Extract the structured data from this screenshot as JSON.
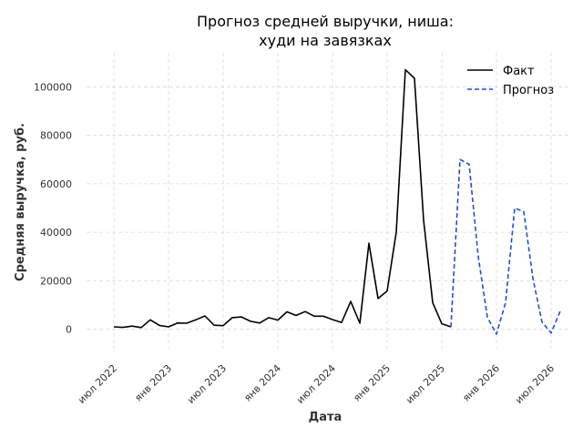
{
  "chart_data": {
    "type": "line",
    "title_line1": "Прогноз средней выручки, ниша:",
    "title_line2": "худи на завязках",
    "xlabel": "Дата",
    "ylabel": "Средняя выручка, руб.",
    "xticks": [
      {
        "label": "июл 2022",
        "date": "2022-07"
      },
      {
        "label": "янв 2023",
        "date": "2023-01"
      },
      {
        "label": "июл 2023",
        "date": "2023-07"
      },
      {
        "label": "янв 2024",
        "date": "2024-01"
      },
      {
        "label": "июл 2024",
        "date": "2024-07"
      },
      {
        "label": "янв 2025",
        "date": "2025-01"
      },
      {
        "label": "июл 2025",
        "date": "2025-07"
      },
      {
        "label": "янв 2026",
        "date": "2026-01"
      },
      {
        "label": "июл 2026",
        "date": "2026-07"
      }
    ],
    "yticks": [
      0,
      20000,
      40000,
      60000,
      80000,
      100000
    ],
    "ytick_labels": [
      "0",
      "20000",
      "40000",
      "60000",
      "80000",
      "100000"
    ],
    "ylim": [
      -8000,
      114000
    ],
    "xlim": [
      "2022-04",
      "2026-09"
    ],
    "legend_position": "top-right",
    "grid": true,
    "series": [
      {
        "name": "Факт",
        "color": "#000000",
        "style": "solid",
        "points": [
          [
            "2022-07",
            1000
          ],
          [
            "2022-08",
            800
          ],
          [
            "2022-09",
            1300
          ],
          [
            "2022-10",
            700
          ],
          [
            "2022-11",
            3900
          ],
          [
            "2022-12",
            1600
          ],
          [
            "2023-01",
            1000
          ],
          [
            "2023-02",
            2600
          ],
          [
            "2023-03",
            2500
          ],
          [
            "2023-04",
            3900
          ],
          [
            "2023-05",
            5500
          ],
          [
            "2023-06",
            1700
          ],
          [
            "2023-07",
            1500
          ],
          [
            "2023-08",
            4800
          ],
          [
            "2023-09",
            5100
          ],
          [
            "2023-10",
            3300
          ],
          [
            "2023-11",
            2600
          ],
          [
            "2023-12",
            4800
          ],
          [
            "2024-01",
            3800
          ],
          [
            "2024-02",
            7200
          ],
          [
            "2024-03",
            5700
          ],
          [
            "2024-04",
            7300
          ],
          [
            "2024-05",
            5400
          ],
          [
            "2024-06",
            5400
          ],
          [
            "2024-07",
            4000
          ],
          [
            "2024-08",
            2800
          ],
          [
            "2024-09",
            11500
          ],
          [
            "2024-10",
            2500
          ],
          [
            "2024-11",
            35500
          ],
          [
            "2024-12",
            12700
          ],
          [
            "2025-01",
            15800
          ],
          [
            "2025-02",
            40000
          ],
          [
            "2025-03",
            107000
          ],
          [
            "2025-04",
            103500
          ],
          [
            "2025-05",
            45000
          ],
          [
            "2025-06",
            11000
          ],
          [
            "2025-07",
            2300
          ],
          [
            "2025-08",
            1000
          ]
        ]
      },
      {
        "name": "Прогноз",
        "color": "#1f4fd1",
        "style": "dashed",
        "points": [
          [
            "2025-08",
            1000
          ],
          [
            "2025-09",
            70000
          ],
          [
            "2025-10",
            68000
          ],
          [
            "2025-11",
            30000
          ],
          [
            "2025-12",
            5000
          ],
          [
            "2026-01",
            -2000
          ],
          [
            "2026-02",
            11000
          ],
          [
            "2026-03",
            50000
          ],
          [
            "2026-04",
            48500
          ],
          [
            "2026-05",
            21000
          ],
          [
            "2026-06",
            3000
          ],
          [
            "2026-07",
            -1500
          ],
          [
            "2026-08",
            7500
          ]
        ]
      }
    ]
  }
}
